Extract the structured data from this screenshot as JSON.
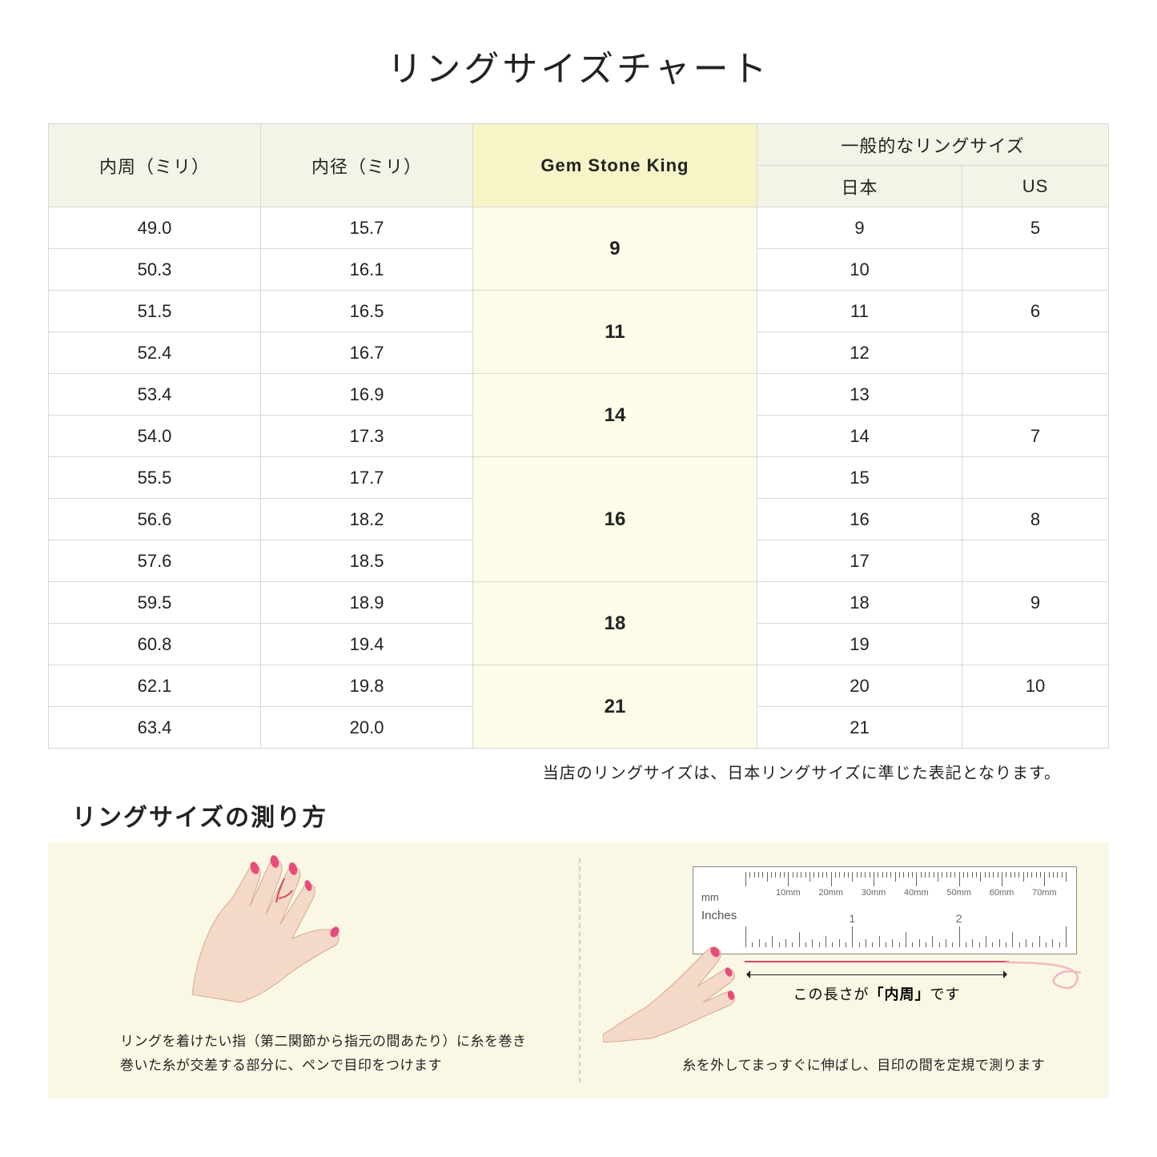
{
  "title": "リングサイズチャート",
  "headers": {
    "circumference": "内周（ミリ）",
    "diameter": "内径（ミリ）",
    "gem": "Gem Stone King",
    "general": "一般的なリングサイズ",
    "japan": "日本",
    "us": "US"
  },
  "rows": [
    {
      "circ": "49.0",
      "diam": "15.7",
      "jp": "9",
      "us": "5"
    },
    {
      "circ": "50.3",
      "diam": "16.1",
      "jp": "10",
      "us": ""
    },
    {
      "circ": "51.5",
      "diam": "16.5",
      "jp": "11",
      "us": "6"
    },
    {
      "circ": "52.4",
      "diam": "16.7",
      "jp": "12",
      "us": ""
    },
    {
      "circ": "53.4",
      "diam": "16.9",
      "jp": "13",
      "us": ""
    },
    {
      "circ": "54.0",
      "diam": "17.3",
      "jp": "14",
      "us": "7"
    },
    {
      "circ": "55.5",
      "diam": "17.7",
      "jp": "15",
      "us": ""
    },
    {
      "circ": "56.6",
      "diam": "18.2",
      "jp": "16",
      "us": "8"
    },
    {
      "circ": "57.6",
      "diam": "18.5",
      "jp": "17",
      "us": ""
    },
    {
      "circ": "59.5",
      "diam": "18.9",
      "jp": "18",
      "us": "9"
    },
    {
      "circ": "60.8",
      "diam": "19.4",
      "jp": "19",
      "us": ""
    },
    {
      "circ": "62.1",
      "diam": "19.8",
      "jp": "20",
      "us": "10"
    },
    {
      "circ": "63.4",
      "diam": "20.0",
      "jp": "21",
      "us": ""
    }
  ],
  "gem_groups": [
    {
      "value": "9",
      "span": 2
    },
    {
      "value": "11",
      "span": 2
    },
    {
      "value": "14",
      "span": 2
    },
    {
      "value": "16",
      "span": 3
    },
    {
      "value": "18",
      "span": 2
    },
    {
      "value": "21",
      "span": 2
    }
  ],
  "note": "当店のリングサイズは、日本リングサイズに準じた表記となります。",
  "subtitle": "リングサイズの測り方",
  "left_caption_1": "リングを着けたい指（第二関節から指元の間あたり）に糸を巻き",
  "left_caption_2": "巻いた糸が交差する部分に、ペンで目印をつけます",
  "right_caption": "糸を外してまっすぐに伸ばし、目印の間を定規で測ります",
  "ruler": {
    "mm_label": "mm",
    "in_label": "Inches",
    "mm_ticks": [
      "10mm",
      "20mm",
      "30mm",
      "40mm",
      "50mm",
      "60mm",
      "70mm"
    ],
    "in_ticks": [
      "1",
      "2"
    ]
  },
  "arrow_label_pre": "この長さが",
  "arrow_label_bold": "「内周」",
  "arrow_label_post": "です",
  "colors": {
    "header_bg": "#f3f3e8",
    "gem_header_bg": "#f7f5c8",
    "gem_cell_bg": "#fcfce8",
    "border": "#d8d8d0",
    "panel_bg": "#faf8e4",
    "skin": "#f5d9c8",
    "nail": "#e84b7a",
    "thread": "#d94560"
  }
}
